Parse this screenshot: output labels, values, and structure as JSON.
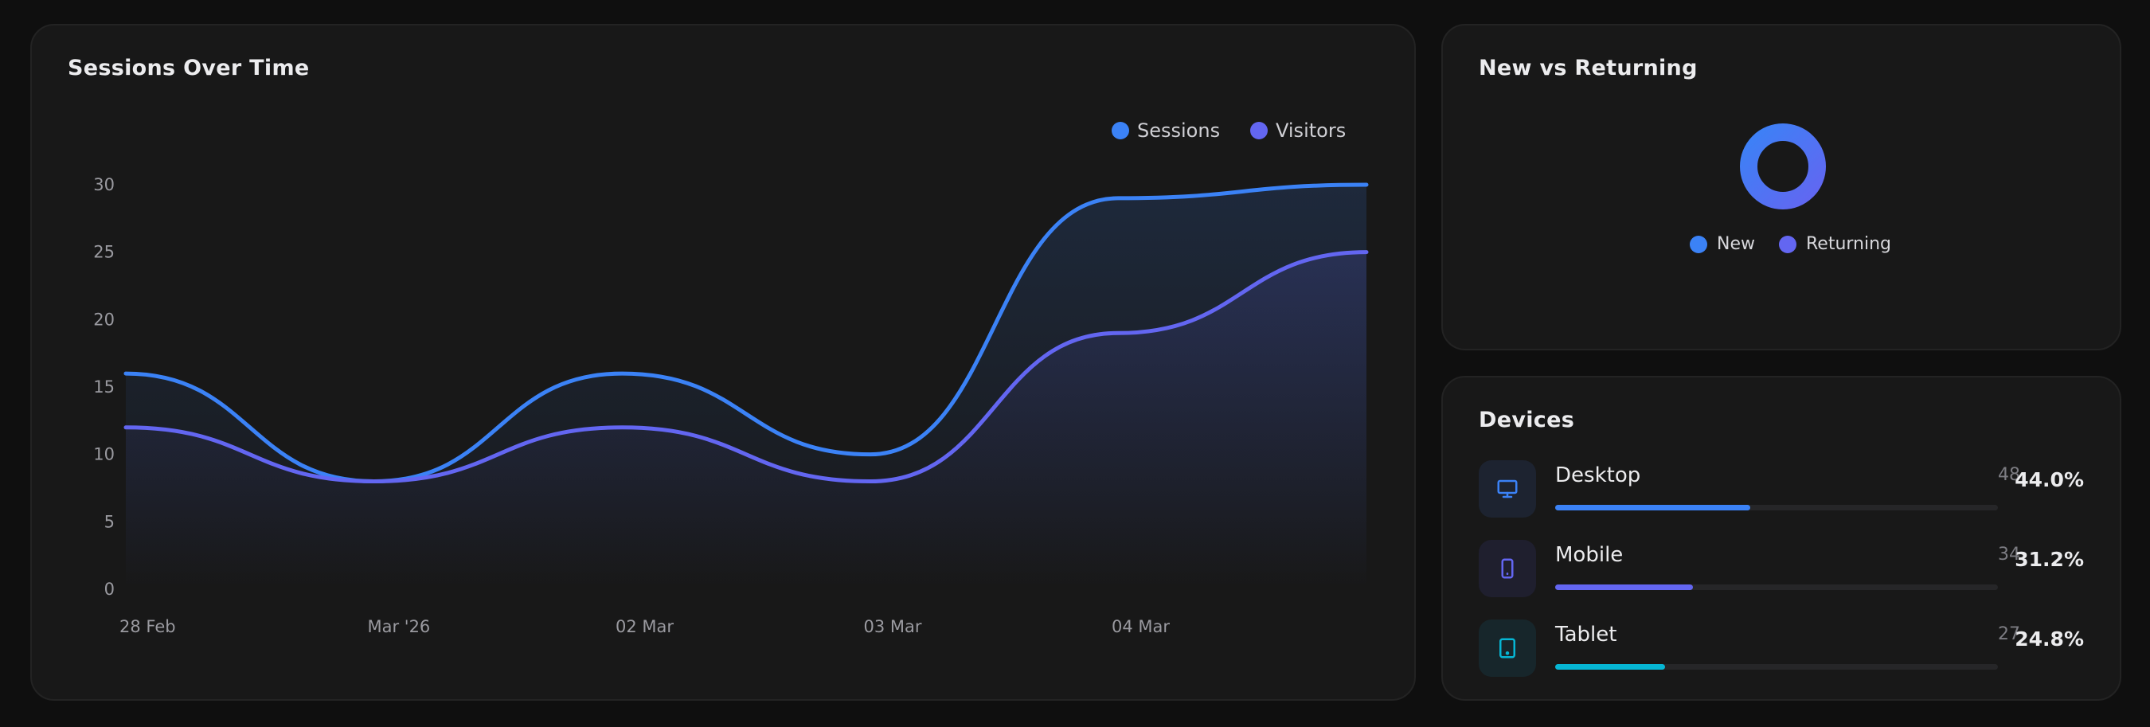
{
  "sessions_card": {
    "title": "Sessions Over Time"
  },
  "nvr_card": {
    "title": "New vs Returning",
    "legend": [
      {
        "label": "New",
        "color": "#3b82f6"
      },
      {
        "label": "Returning",
        "color": "#6366f1"
      }
    ]
  },
  "devices_card": {
    "title": "Devices",
    "items": [
      {
        "name": "Desktop",
        "count": "48",
        "percent": "44.0%",
        "fraction": 0.44,
        "color": "#3b82f6",
        "icon": "monitor-icon"
      },
      {
        "name": "Mobile",
        "count": "34",
        "percent": "31.2%",
        "fraction": 0.312,
        "color": "#6366f1",
        "icon": "smartphone-icon"
      },
      {
        "name": "Tablet",
        "count": "27",
        "percent": "24.8%",
        "fraction": 0.248,
        "color": "#06b6d4",
        "icon": "tablet-icon"
      }
    ]
  },
  "chart_data": {
    "type": "area",
    "title": "Sessions Over Time",
    "x_ticks": [
      "28 Feb",
      "Mar '26",
      "02 Mar",
      "03 Mar",
      "04 Mar"
    ],
    "ylim": [
      0,
      30
    ],
    "y_ticks": [
      "0",
      "5",
      "10",
      "15",
      "20",
      "25",
      "30"
    ],
    "grid": false,
    "legend_position": "top-right",
    "series": [
      {
        "name": "Sessions",
        "color": "#3b82f6",
        "values": [
          16,
          8,
          16,
          10,
          29,
          30
        ]
      },
      {
        "name": "Visitors",
        "color": "#6366f1",
        "values": [
          12,
          8,
          12,
          8,
          19,
          25
        ]
      }
    ]
  }
}
